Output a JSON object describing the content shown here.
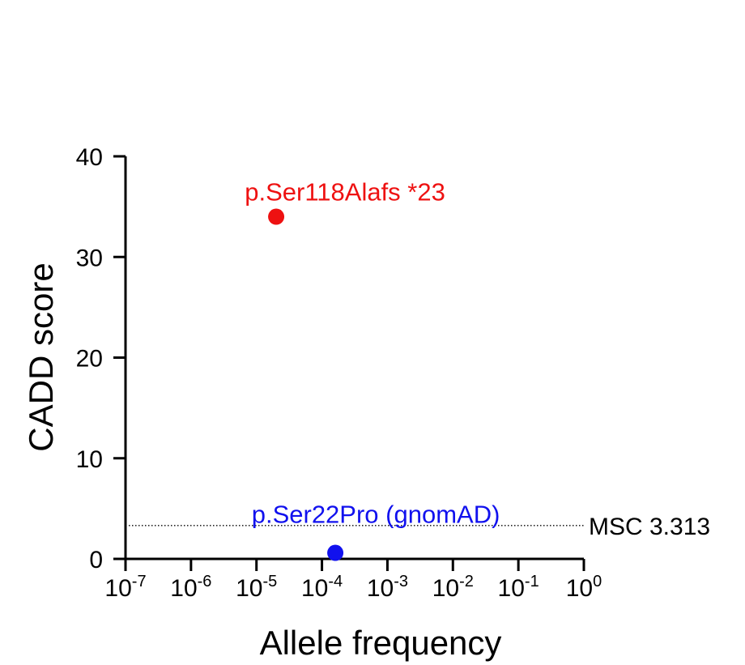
{
  "chart_data": {
    "type": "scatter",
    "xlabel": "Allele frequency",
    "ylabel": "CADD score",
    "x_scale": "log",
    "xlim": [
      1e-07,
      1
    ],
    "ylim": [
      0,
      40
    ],
    "x_tick_labels": [
      {
        "base": "10",
        "exp": "-7"
      },
      {
        "base": "10",
        "exp": "-6"
      },
      {
        "base": "10",
        "exp": "-5"
      },
      {
        "base": "10",
        "exp": "-4"
      },
      {
        "base": "10",
        "exp": "-3"
      },
      {
        "base": "10",
        "exp": "-2"
      },
      {
        "base": "10",
        "exp": "-1"
      },
      {
        "base": "10",
        "exp": "0"
      }
    ],
    "y_tick_labels": [
      "0",
      "10",
      "20",
      "30",
      "40"
    ],
    "grid": false,
    "points": [
      {
        "label": "p.Ser118Alafs *23",
        "x": 2e-05,
        "y": 34,
        "color": "#ee1111"
      },
      {
        "label": "p.Ser22Pro (gnomAD)",
        "x": 0.00016,
        "y": 0.6,
        "color": "#1111ee"
      }
    ],
    "reference_line": {
      "label": "MSC 3.313",
      "y": 3.313,
      "style": "dotted"
    }
  }
}
